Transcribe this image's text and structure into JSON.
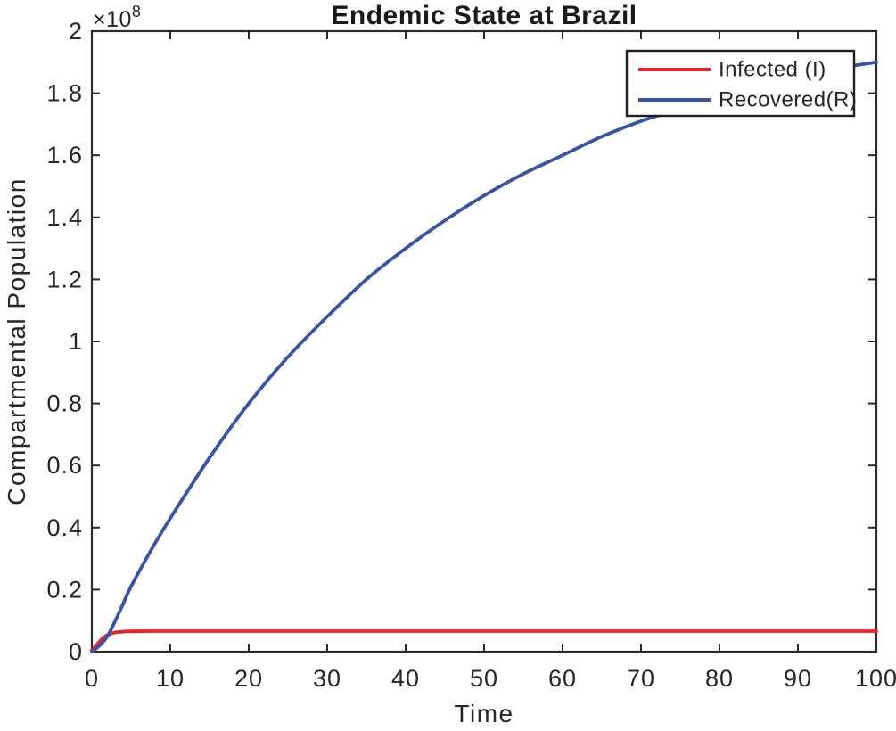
{
  "figure": {
    "background_color": "#ffffff",
    "text_color": "#262626",
    "axis_color": "#2b2b2b"
  },
  "chart_data": {
    "type": "line",
    "title": "Endemic State at Brazil",
    "xlabel": "Time",
    "ylabel": "Compartmental Population",
    "y_scale_label": {
      "base": "×10",
      "exp": "8"
    },
    "xlim": [
      0,
      100
    ],
    "ylim": [
      0,
      2
    ],
    "grid": false,
    "box": true,
    "tick_direction": "in",
    "legend_position": "top-right",
    "x_ticks": [
      0,
      10,
      20,
      30,
      40,
      50,
      60,
      70,
      80,
      90,
      100
    ],
    "x_tick_labels": [
      "0",
      "10",
      "20",
      "30",
      "40",
      "50",
      "60",
      "70",
      "80",
      "90",
      "100"
    ],
    "y_ticks": [
      0,
      0.2,
      0.4,
      0.6,
      0.8,
      1,
      1.2,
      1.4,
      1.6,
      1.8,
      2
    ],
    "y_tick_labels": [
      "0",
      "0.2",
      "0.4",
      "0.6",
      "0.8",
      "1",
      "1.2",
      "1.4",
      "1.6",
      "1.8",
      "2"
    ],
    "y_values_unit": "1e8 (values below are in units of 10^8)",
    "line_width": 3.8,
    "series": [
      {
        "id": "infected",
        "name": "Infected (I)",
        "color": "#ed2126",
        "points": [
          [
            0,
            0.005
          ],
          [
            0.5,
            0.018
          ],
          [
            1,
            0.033
          ],
          [
            1.5,
            0.046
          ],
          [
            2,
            0.054
          ],
          [
            2.5,
            0.059
          ],
          [
            3,
            0.062
          ],
          [
            4,
            0.0645
          ],
          [
            5,
            0.0655
          ],
          [
            7.5,
            0.066
          ],
          [
            10,
            0.066
          ],
          [
            15,
            0.066
          ],
          [
            20,
            0.066
          ],
          [
            25,
            0.066
          ],
          [
            30,
            0.066
          ],
          [
            35,
            0.066
          ],
          [
            40,
            0.066
          ],
          [
            45,
            0.066
          ],
          [
            50,
            0.066
          ],
          [
            55,
            0.066
          ],
          [
            60,
            0.066
          ],
          [
            65,
            0.066
          ],
          [
            70,
            0.066
          ],
          [
            75,
            0.066
          ],
          [
            80,
            0.066
          ],
          [
            85,
            0.066
          ],
          [
            90,
            0.066
          ],
          [
            95,
            0.066
          ],
          [
            100,
            0.066
          ]
        ]
      },
      {
        "id": "recovered",
        "name": "Recovered(R)",
        "color": "#3a54a5",
        "points": [
          [
            0,
            0
          ],
          [
            1,
            0.02
          ],
          [
            2,
            0.05
          ],
          [
            3,
            0.1
          ],
          [
            4,
            0.155
          ],
          [
            5,
            0.21
          ],
          [
            7.5,
            0.325
          ],
          [
            10,
            0.43
          ],
          [
            15,
            0.625
          ],
          [
            20,
            0.8
          ],
          [
            25,
            0.95
          ],
          [
            30,
            1.08
          ],
          [
            35,
            1.2
          ],
          [
            40,
            1.3
          ],
          [
            45,
            1.39
          ],
          [
            50,
            1.47
          ],
          [
            55,
            1.54
          ],
          [
            60,
            1.6
          ],
          [
            65,
            1.66
          ],
          [
            70,
            1.71
          ],
          [
            75,
            1.75
          ],
          [
            80,
            1.79
          ],
          [
            85,
            1.82
          ],
          [
            90,
            1.85
          ],
          [
            95,
            1.88
          ],
          [
            100,
            1.9
          ]
        ]
      }
    ]
  }
}
